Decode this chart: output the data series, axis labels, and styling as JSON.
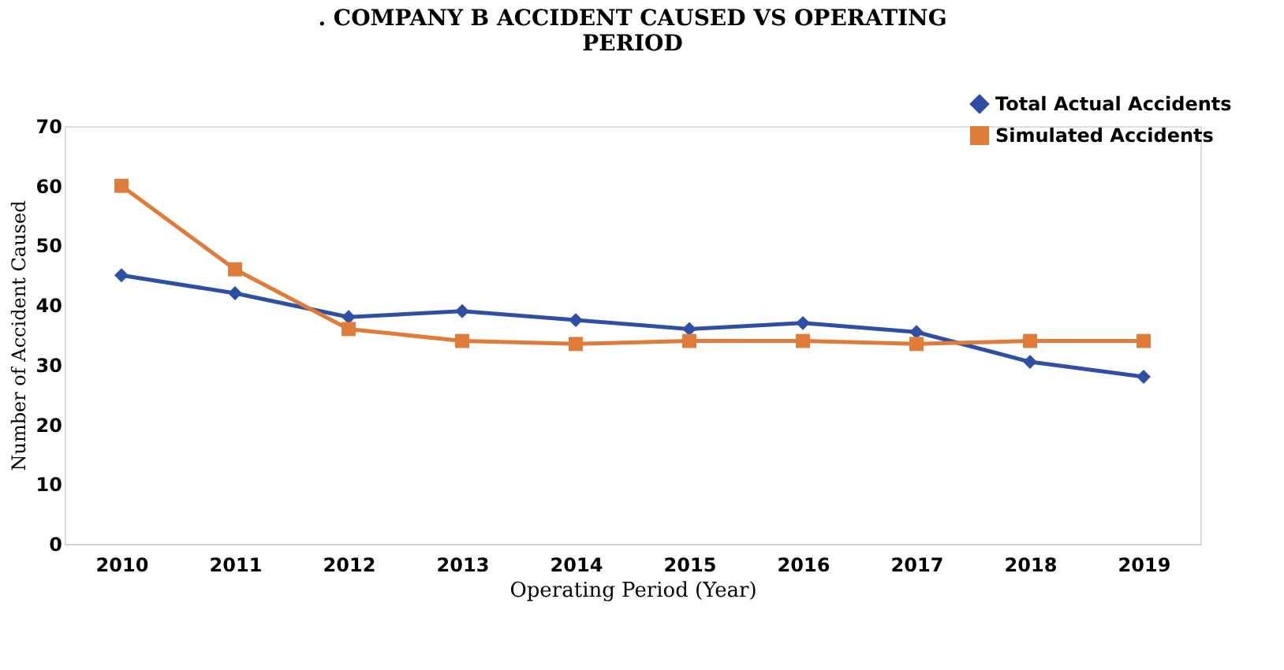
{
  "chart_data": {
    "type": "line",
    "title": ". COMPANY B ACCIDENT CAUSED VS OPERATING\nPERIOD",
    "xlabel": "Operating Period (Year)",
    "ylabel": "Number of Accident Caused",
    "categories": [
      "2010",
      "2011",
      "2012",
      "2013",
      "2014",
      "2015",
      "2016",
      "2017",
      "2018",
      "2019"
    ],
    "series": [
      {
        "name": "Total Actual Accidents",
        "color": "#2e4fa3",
        "marker": "diamond",
        "values": [
          45,
          42,
          38,
          39,
          37.5,
          36,
          37,
          35.5,
          30.5,
          28
        ]
      },
      {
        "name": "Simulated Accidents",
        "color": "#e07b39",
        "marker": "square",
        "values": [
          60,
          46,
          36,
          34,
          33.5,
          34,
          34,
          33.5,
          34,
          34
        ]
      }
    ],
    "ylim": [
      0,
      70
    ],
    "yticks": [
      0,
      10,
      20,
      30,
      40,
      50,
      60,
      70
    ],
    "grid": false,
    "legend": "top right",
    "line_style": "solid"
  }
}
